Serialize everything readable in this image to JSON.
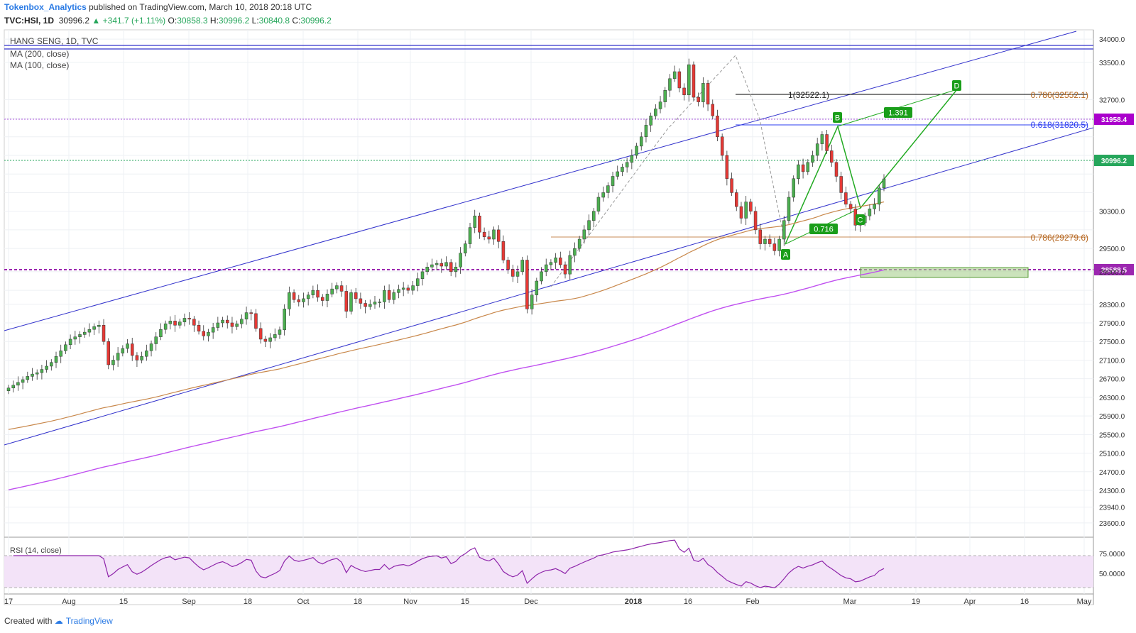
{
  "header": {
    "author": "Tokenbox_Analytics",
    "published_text": "published on TradingView.com, March 10, 2018 20:18 UTC",
    "symbol": "TVC:HSI, 1D",
    "last": "30996.2",
    "change": "+341.7 (+1.11%)",
    "o_label": "O:",
    "o_value": "30858.3",
    "h_label": "H:",
    "h_value": "30996.2",
    "l_label": "L:",
    "l_value": "30840.8",
    "c_label": "C:",
    "c_value": "30996.2"
  },
  "legend": {
    "title": "HANG SENG, 1D, TVC",
    "ma200": "MA (200, close)",
    "ma100": "MA (100, close)",
    "rsi": "RSI (14, close)"
  },
  "footer": {
    "created_with": "Created with",
    "brand": "TradingView"
  },
  "colors": {
    "up": "#4caf50",
    "down": "#e53935",
    "channel": "#3333cc",
    "ma100": "#c8874a",
    "ma200": "#c050f0",
    "pattern": "#22aa22",
    "support": "#9c27b0",
    "fib_brown": "#b5651d",
    "fib_blue": "#2b3cf0"
  },
  "chart_data": {
    "type": "candlestick",
    "title": "HANG SENG, 1D, TVC",
    "ylim": [
      23400,
      34200
    ],
    "price_ticks": [
      34000,
      33500,
      32700,
      32300,
      31900,
      31500,
      31100,
      30700,
      30300,
      29900,
      29500,
      29000,
      28600,
      28300,
      27900,
      27500,
      27100,
      26700,
      26300,
      25900,
      25500,
      25100,
      24700,
      24300,
      23940,
      23600
    ],
    "price_tick_labels": [
      "34000.0",
      "33500.0",
      "32700.0",
      "",
      "",
      "",
      "",
      "",
      "30300.0",
      "",
      "29500.0",
      "29000.0",
      "",
      "28300.0",
      "27900.0",
      "27500.0",
      "27100.0",
      "26700.0",
      "26300.0",
      "25900.0",
      "25500.0",
      "25100.0",
      "24700.0",
      "24300.0",
      "23940.0",
      "23600.0"
    ],
    "time_labels": [
      {
        "label": "17",
        "bold": false
      },
      {
        "label": "Aug",
        "bold": false
      },
      {
        "label": "15",
        "bold": false
      },
      {
        "label": "Sep",
        "bold": false
      },
      {
        "label": "18",
        "bold": false
      },
      {
        "label": "Oct",
        "bold": false
      },
      {
        "label": "18",
        "bold": false
      },
      {
        "label": "Nov",
        "bold": false
      },
      {
        "label": "15",
        "bold": false
      },
      {
        "label": "Dec",
        "bold": false
      },
      {
        "label": "2018",
        "bold": true
      },
      {
        "label": "16",
        "bold": false
      },
      {
        "label": "Feb",
        "bold": false
      },
      {
        "label": "Mar",
        "bold": false
      },
      {
        "label": "19",
        "bold": false
      },
      {
        "label": "Apr",
        "bold": false
      },
      {
        "label": "16",
        "bold": false
      },
      {
        "label": "May",
        "bold": false
      }
    ],
    "closes": [
      26500,
      26560,
      26620,
      26680,
      26750,
      26800,
      26830,
      26900,
      26970,
      27050,
      27180,
      27300,
      27430,
      27550,
      27600,
      27650,
      27700,
      27760,
      27820,
      27850,
      27500,
      27000,
      27100,
      27250,
      27350,
      27450,
      27200,
      27100,
      27180,
      27300,
      27450,
      27600,
      27760,
      27880,
      27940,
      27850,
      27920,
      28000,
      27980,
      27850,
      27720,
      27620,
      27700,
      27800,
      27900,
      27960,
      27900,
      27820,
      27880,
      27980,
      28120,
      28100,
      27780,
      27550,
      27500,
      27580,
      27650,
      27750,
      28200,
      28550,
      28400,
      28350,
      28420,
      28500,
      28600,
      28450,
      28380,
      28520,
      28630,
      28700,
      28580,
      28150,
      28550,
      28420,
      28320,
      28250,
      28300,
      28350,
      28350,
      28600,
      28400,
      28550,
      28620,
      28650,
      28600,
      28700,
      28850,
      29000,
      29100,
      29150,
      29180,
      29120,
      29200,
      29000,
      29100,
      29400,
      29600,
      29950,
      30200,
      29850,
      29750,
      29700,
      29900,
      29650,
      29250,
      29050,
      28900,
      29000,
      29250,
      28200,
      28500,
      28800,
      29000,
      29150,
      29200,
      29300,
      29150,
      28950,
      29350,
      29500,
      29700,
      29900,
      30100,
      30300,
      30600,
      30700,
      30850,
      31050,
      31150,
      31250,
      31350,
      31500,
      31700,
      31900,
      32150,
      32350,
      32500,
      32650,
      32900,
      33150,
      33300,
      32950,
      32800,
      33450,
      32750,
      32650,
      33050,
      32600,
      32350,
      31900,
      31500,
      31000,
      30700,
      30400,
      30150,
      30500,
      30300,
      29900,
      29600,
      29700,
      29600,
      29450,
      29700,
      30100,
      30600,
      31000,
      31300,
      31150,
      31350,
      31500,
      31750,
      31950,
      31600,
      31350,
      31050,
      30700,
      30450,
      30350,
      30000,
      30050,
      30200,
      30350,
      30450,
      30800,
      30996
    ]
  }
}
